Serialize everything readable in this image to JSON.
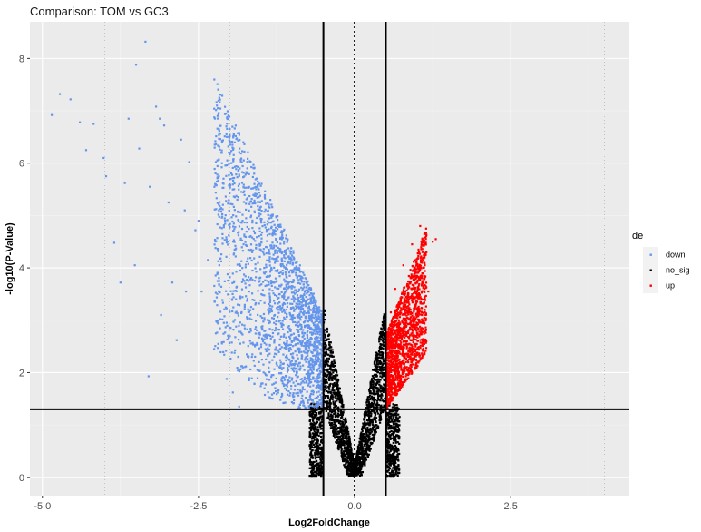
{
  "chart_data": {
    "type": "scatter",
    "title": "Comparison: TOM vs GC3",
    "xlabel": "Log2FoldChange",
    "ylabel": "-log10(P-Value)",
    "xlim": [
      -5.2,
      4.4
    ],
    "ylim": [
      -0.35,
      8.7
    ],
    "x_ticks": [
      -5.0,
      -2.5,
      0.0,
      2.5
    ],
    "x_tick_labels": [
      "-5.0",
      "-2.5",
      "0.0",
      "2.5"
    ],
    "y_ticks": [
      0,
      2,
      4,
      6,
      8
    ],
    "y_tick_labels": [
      "0",
      "2",
      "4",
      "6",
      "8"
    ],
    "x_dotted_guides": [
      -4,
      -2,
      0,
      4
    ],
    "vertical_thresholds": [
      -0.5,
      0.5
    ],
    "horizontal_threshold": 1.3,
    "grid": true,
    "legend": {
      "title": "de",
      "position": "right",
      "entries": [
        {
          "label": "down",
          "color": "#6495ED"
        },
        {
          "label": "no_sig",
          "color": "#000000"
        },
        {
          "label": "up",
          "color": "#FF0000"
        }
      ]
    },
    "series": [
      {
        "name": "down",
        "color": "#6495ED",
        "points": [
          [
            -4.85,
            6.92
          ],
          [
            -4.72,
            7.32
          ],
          [
            -4.55,
            7.22
          ],
          [
            -4.4,
            6.78
          ],
          [
            -4.3,
            6.25
          ],
          [
            -4.18,
            6.75
          ],
          [
            -4.02,
            6.1
          ],
          [
            -3.98,
            5.75
          ],
          [
            -3.85,
            4.48
          ],
          [
            -3.75,
            3.72
          ],
          [
            -3.68,
            5.62
          ],
          [
            -3.62,
            6.85
          ],
          [
            -3.52,
            4.05
          ],
          [
            -3.5,
            7.88
          ],
          [
            -3.45,
            6.28
          ],
          [
            -3.35,
            8.32
          ],
          [
            -3.28,
            5.55
          ],
          [
            -3.18,
            7.08
          ],
          [
            -3.12,
            6.85
          ],
          [
            -3.05,
            6.72
          ],
          [
            -2.98,
            5.25
          ],
          [
            -2.92,
            3.72
          ],
          [
            -2.85,
            2.62
          ],
          [
            -2.78,
            6.45
          ],
          [
            -2.72,
            5.1
          ],
          [
            -2.65,
            6.02
          ],
          [
            -2.55,
            4.72
          ],
          [
            -2.45,
            3.55
          ],
          [
            -2.35,
            4.15
          ],
          [
            -2.25,
            2.45
          ],
          [
            -2.15,
            3.02
          ],
          [
            -2.05,
            1.88
          ],
          [
            -1.95,
            1.62
          ],
          [
            -1.85,
            1.35
          ],
          [
            -3.3,
            1.93
          ],
          [
            -3.1,
            3.1
          ],
          [
            -2.7,
            3.55
          ],
          [
            -2.5,
            4.9
          ],
          [
            -2.2,
            3.88
          ],
          [
            -1.9,
            3.4
          ]
        ]
      },
      {
        "name": "up",
        "color": "#FF0000",
        "points": [
          [
            0.52,
            2.3
          ],
          [
            0.58,
            3.15
          ],
          [
            0.65,
            3.6
          ],
          [
            0.72,
            2.85
          ],
          [
            0.78,
            4.05
          ],
          [
            0.85,
            3.4
          ],
          [
            0.92,
            4.45
          ],
          [
            0.98,
            3.85
          ],
          [
            1.05,
            4.8
          ],
          [
            1.12,
            4.2
          ],
          [
            1.18,
            3.55
          ],
          [
            1.25,
            4.5
          ],
          [
            1.3,
            4.55
          ]
        ]
      }
    ]
  }
}
